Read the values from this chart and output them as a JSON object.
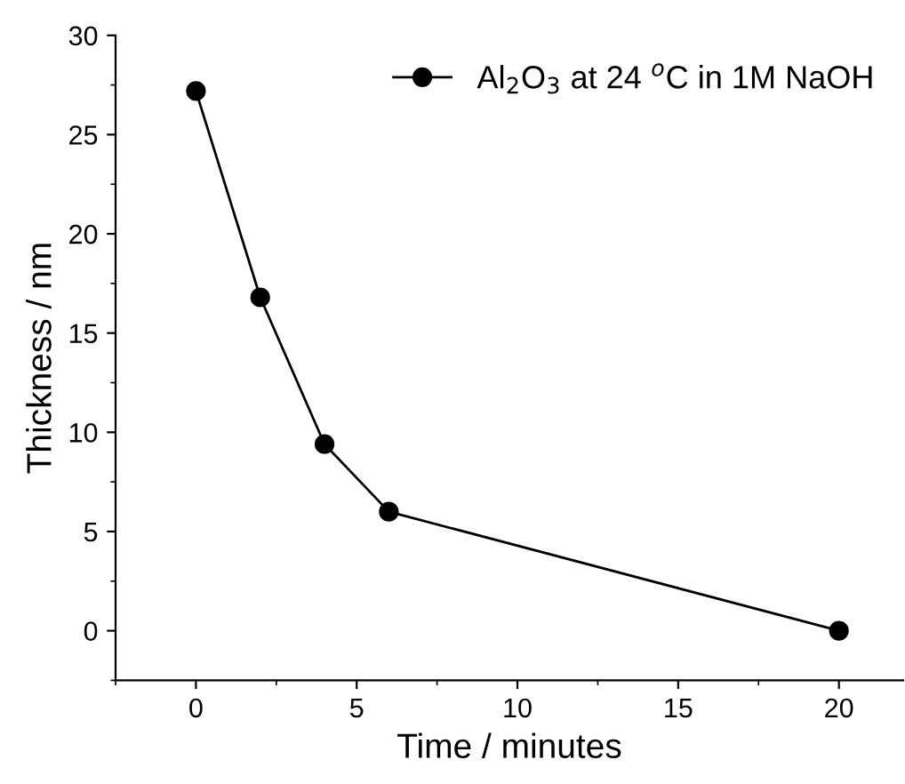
{
  "chart_data": {
    "type": "line",
    "xlabel": "Time / minutes",
    "ylabel": "Thickness / nm",
    "x": [
      0,
      2,
      4,
      6,
      20
    ],
    "series": [
      {
        "name": "Al$_{2}$O$_{3}$ at 24 $^{o}$C in 1M NaOH",
        "color": "#000000",
        "values": [
          27.2,
          16.8,
          9.4,
          6.0,
          0
        ]
      }
    ],
    "xlim": [
      -2.5,
      22
    ],
    "xticks": [
      0,
      5,
      10,
      15,
      20
    ],
    "ylim": [
      -2.5,
      30
    ],
    "yticks": [
      0,
      5,
      10,
      15,
      20,
      25,
      30
    ],
    "marker": "circle",
    "line_style": "solid",
    "legend": "top right",
    "grid": false
  }
}
